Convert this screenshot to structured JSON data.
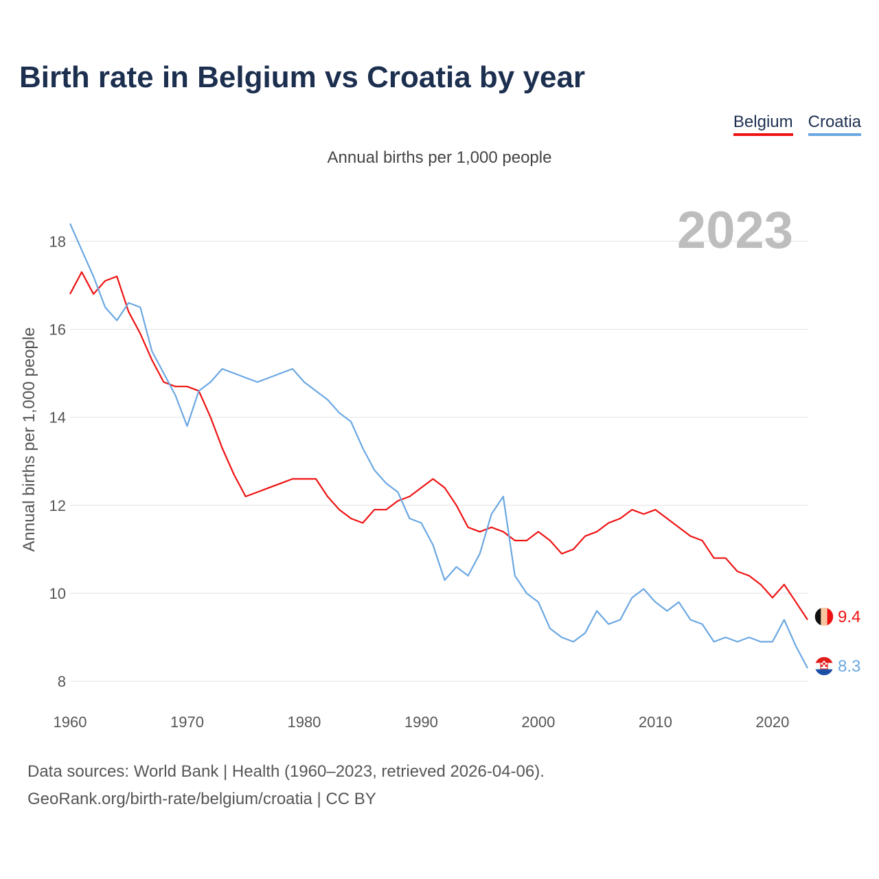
{
  "header": {
    "title": "Birth rate in Belgium vs Croatia by year",
    "subtitle": "Annual births per 1,000 people"
  },
  "legend": [
    {
      "label": "Belgium",
      "color": "#ee1111"
    },
    {
      "label": "Croatia",
      "color": "#6aa7e2"
    }
  ],
  "footer": {
    "line1": "Data sources: World Bank | Health (1960–2023, retrieved 2026-04-06).",
    "line2": "GeoRank.org/birth-rate/belgium/croatia | CC BY"
  },
  "chart_data": {
    "type": "line",
    "title": "Birth rate in Belgium vs Croatia by year",
    "ylabel": "Annual births per 1,000 people",
    "xlabel": "",
    "year_label": "2023",
    "xlim": [
      1960,
      2023
    ],
    "ylim": [
      7.8,
      18.8
    ],
    "x_ticks": [
      1960,
      1970,
      1980,
      1990,
      2000,
      2010,
      2020
    ],
    "y_ticks": [
      8,
      10,
      12,
      14,
      16,
      18
    ],
    "grid": true,
    "x": [
      1960,
      1961,
      1962,
      1963,
      1964,
      1965,
      1966,
      1967,
      1968,
      1969,
      1970,
      1971,
      1972,
      1973,
      1974,
      1975,
      1976,
      1977,
      1978,
      1979,
      1980,
      1981,
      1982,
      1983,
      1984,
      1985,
      1986,
      1987,
      1988,
      1989,
      1990,
      1991,
      1992,
      1993,
      1994,
      1995,
      1996,
      1997,
      1998,
      1999,
      2000,
      2001,
      2002,
      2003,
      2004,
      2005,
      2006,
      2007,
      2008,
      2009,
      2010,
      2011,
      2012,
      2013,
      2014,
      2015,
      2016,
      2017,
      2018,
      2019,
      2020,
      2021,
      2022,
      2023
    ],
    "series": [
      {
        "name": "Belgium",
        "color": "#ee1111",
        "end_label": "9.4",
        "values": [
          16.8,
          17.3,
          16.8,
          17.1,
          17.2,
          16.4,
          15.9,
          15.3,
          14.8,
          14.7,
          14.7,
          14.6,
          14.0,
          13.3,
          12.7,
          12.2,
          12.3,
          12.4,
          12.5,
          12.6,
          12.6,
          12.6,
          12.2,
          11.9,
          11.7,
          11.6,
          11.9,
          11.9,
          12.1,
          12.2,
          12.4,
          12.6,
          12.4,
          12.0,
          11.5,
          11.4,
          11.5,
          11.4,
          11.2,
          11.2,
          11.4,
          11.2,
          10.9,
          11.0,
          11.3,
          11.4,
          11.6,
          11.7,
          11.9,
          11.8,
          11.9,
          11.7,
          11.5,
          11.3,
          11.2,
          10.8,
          10.8,
          10.5,
          10.4,
          10.2,
          9.9,
          10.2,
          9.8,
          9.4
        ]
      },
      {
        "name": "Croatia",
        "color": "#6aa7e2",
        "end_label": "8.3",
        "values": [
          18.4,
          17.8,
          17.2,
          16.5,
          16.2,
          16.6,
          16.5,
          15.5,
          15.0,
          14.5,
          13.8,
          14.6,
          14.8,
          15.1,
          15.0,
          14.9,
          14.8,
          14.9,
          15.0,
          15.1,
          14.8,
          14.6,
          14.4,
          14.1,
          13.9,
          13.3,
          12.8,
          12.5,
          12.3,
          11.7,
          11.6,
          11.1,
          10.3,
          10.6,
          10.4,
          10.9,
          11.8,
          12.2,
          10.4,
          10.0,
          9.8,
          9.2,
          9.0,
          8.9,
          9.1,
          9.6,
          9.3,
          9.4,
          9.9,
          10.1,
          9.8,
          9.6,
          9.8,
          9.4,
          9.3,
          8.9,
          9.0,
          8.9,
          9.0,
          8.9,
          8.9,
          9.4,
          8.8,
          8.3
        ]
      }
    ]
  }
}
